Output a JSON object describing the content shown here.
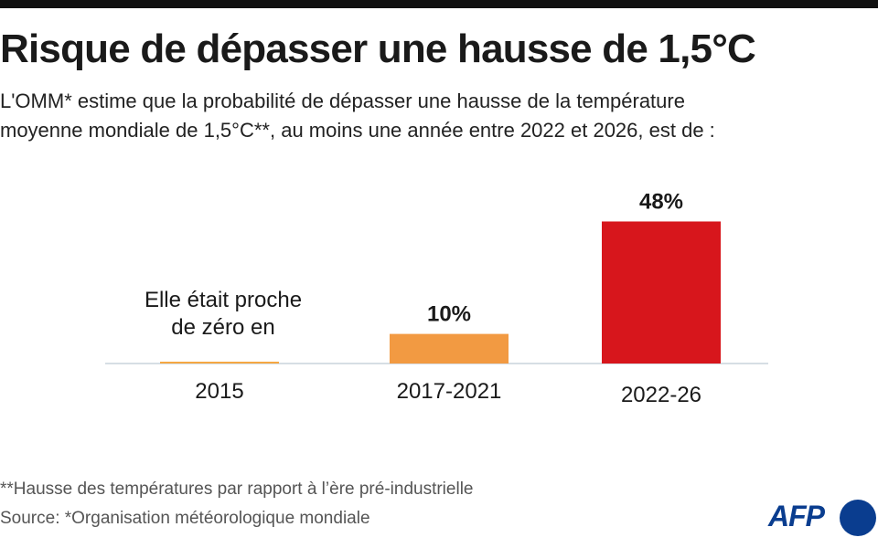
{
  "title": "Risque de dépasser une hausse de 1,5°C",
  "subtitle": {
    "line1": "L'OMM* estime que la probabilité de dépasser une hausse de la température",
    "line2": "moyenne mondiale de 1,5°C**, au moins une année entre 2022 et 2026, est de :"
  },
  "chart_data": {
    "type": "bar",
    "categories": [
      "2015",
      "2017-2021",
      "2022-26"
    ],
    "values": [
      0,
      10,
      48
    ],
    "value_labels": [
      "",
      "10%",
      "48%"
    ],
    "annotations": [
      {
        "category": "2015",
        "text_lines": [
          "Elle était proche",
          "de zéro en"
        ]
      }
    ],
    "colors": [
      "#f5a742",
      "#f29a42",
      "#d7161c"
    ],
    "ylim": [
      0,
      50
    ],
    "grid": false,
    "axis_color": "#c9d3dc"
  },
  "footnotes": {
    "line1": "**Hausse des températures par rapport à l’ère pré-industrielle",
    "line2": "Source: *Organisation météorologique mondiale"
  },
  "logo": {
    "text": "AFP"
  }
}
